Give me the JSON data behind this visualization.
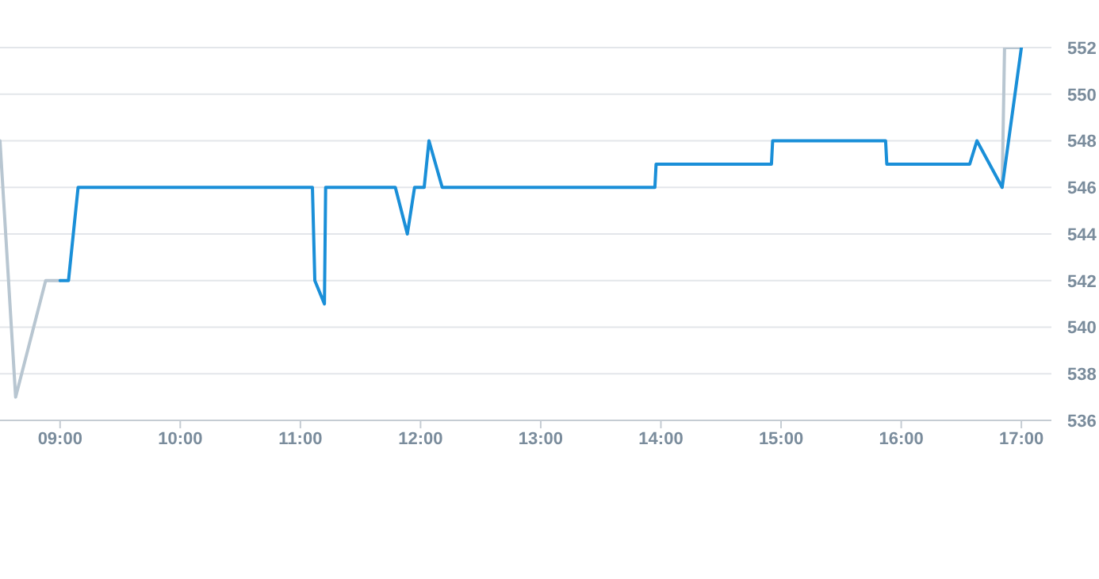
{
  "chart_data": {
    "type": "line",
    "xlim": [
      8.5,
      17.25
    ],
    "xticks": [
      {
        "value": 9,
        "label": "09:00"
      },
      {
        "value": 10,
        "label": "10:00"
      },
      {
        "value": 11,
        "label": "11:00"
      },
      {
        "value": 12,
        "label": "12:00"
      },
      {
        "value": 13,
        "label": "13:00"
      },
      {
        "value": 14,
        "label": "14:00"
      },
      {
        "value": 15,
        "label": "15:00"
      },
      {
        "value": 16,
        "label": "16:00"
      },
      {
        "value": 17,
        "label": "17:00"
      }
    ],
    "ylim": [
      536,
      552
    ],
    "yticks": [
      536,
      538,
      540,
      542,
      544,
      546,
      548,
      550,
      552
    ],
    "grid": "y",
    "marker": "none",
    "series": [
      {
        "color": "#b8c6d1",
        "x": [
          8.5,
          8.63,
          8.88,
          9.0,
          12.9,
          16.84,
          16.86,
          17.0
        ],
        "values": [
          548,
          537,
          542,
          542,
          null,
          546,
          552,
          552
        ]
      },
      {
        "color": "#1a8fd8",
        "x": [
          9.0,
          9.07,
          9.15,
          11.1,
          11.12,
          11.2,
          11.21,
          11.79,
          11.89,
          11.95,
          12.03,
          12.07,
          12.18,
          13.95,
          13.96,
          14.92,
          14.93,
          15.87,
          15.88,
          16.57,
          16.63,
          16.84,
          17.0
        ],
        "values": [
          542,
          542,
          546,
          546,
          542,
          541,
          546,
          546,
          544,
          546,
          546,
          548,
          546,
          546,
          547,
          547,
          548,
          548,
          547,
          547,
          548,
          546,
          552
        ]
      }
    ]
  }
}
